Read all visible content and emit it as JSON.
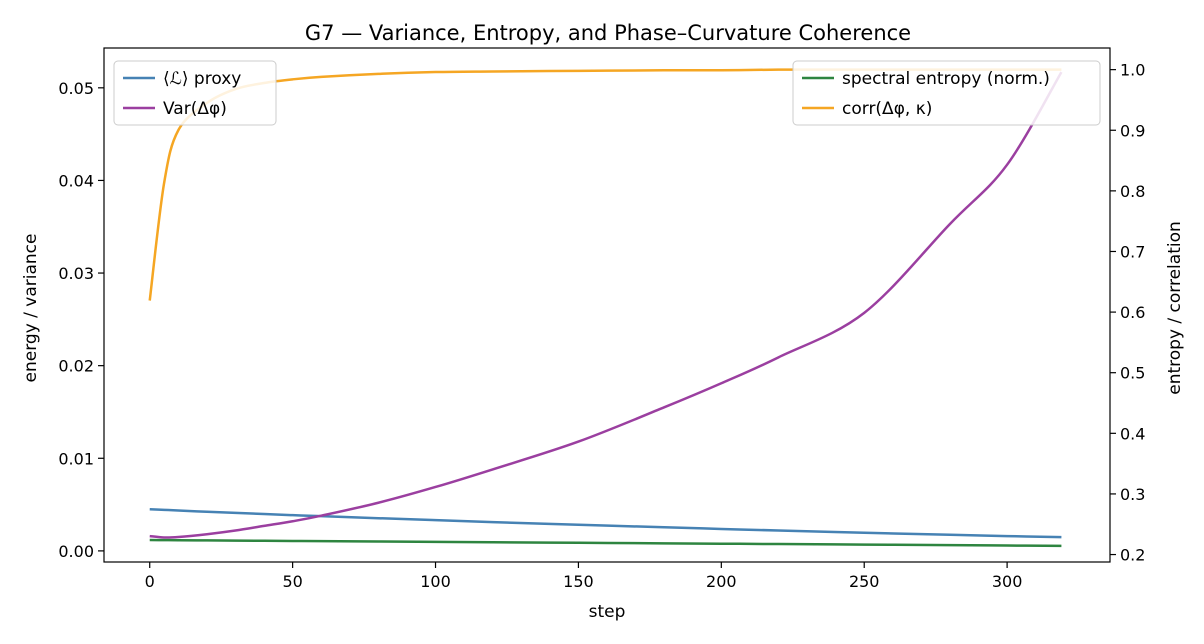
{
  "chart_data": {
    "type": "line",
    "title": "G7 — Variance, Entropy, and Phase–Curvature Coherence",
    "xlabel": "step",
    "ylabel_left": "energy / variance",
    "ylabel_right": "entropy / correlation",
    "xlim": [
      -16,
      336
    ],
    "ylim_left": [
      -0.0012,
      0.0543
    ],
    "ylim_right": [
      0.1877,
      1.0357
    ],
    "x_ticks": [
      0,
      50,
      100,
      150,
      200,
      250,
      300
    ],
    "y_ticks_left": [
      0.0,
      0.01,
      0.02,
      0.03,
      0.04,
      0.05
    ],
    "y_tick_labels_left": [
      "0.00",
      "0.01",
      "0.02",
      "0.03",
      "0.04",
      "0.05"
    ],
    "y_ticks_right": [
      0.2,
      0.3,
      0.4,
      0.5,
      0.6,
      0.7,
      0.8,
      0.9,
      1.0
    ],
    "y_tick_labels_right": [
      "0.2",
      "0.3",
      "0.4",
      "0.5",
      "0.6",
      "0.7",
      "0.8",
      "0.9",
      "1.0"
    ],
    "grid": false,
    "legend_left": {
      "placement": "top-left",
      "entries": [
        "⟨ℒ⟩ proxy",
        "Var(Δφ)"
      ]
    },
    "legend_right": {
      "placement": "top-right",
      "entries": [
        "spectral entropy (norm.)",
        "corr(Δφ, κ)"
      ]
    },
    "x": [
      0,
      5,
      10,
      20,
      30,
      40,
      50,
      60,
      80,
      100,
      120,
      150,
      180,
      200,
      220,
      250,
      280,
      300,
      319
    ],
    "series": [
      {
        "name": "⟨ℒ⟩ proxy",
        "axis": "left",
        "color": "#4682b4",
        "values": [
          0.0045,
          0.00443,
          0.00436,
          0.00422,
          0.0041,
          0.00398,
          0.00386,
          0.00375,
          0.00353,
          0.00332,
          0.00311,
          0.00282,
          0.00255,
          0.00237,
          0.0022,
          0.00196,
          0.00174,
          0.0016,
          0.00148
        ]
      },
      {
        "name": "Var(Δφ)",
        "axis": "left",
        "color": "#9b3fa0",
        "values": [
          0.0016,
          0.00145,
          0.0015,
          0.0018,
          0.0022,
          0.0027,
          0.0032,
          0.0038,
          0.0052,
          0.0069,
          0.0088,
          0.0118,
          0.0155,
          0.0181,
          0.0209,
          0.0257,
          0.0353,
          0.0417,
          0.0517
        ]
      },
      {
        "name": "spectral entropy (norm.)",
        "axis": "right",
        "color": "#2e8540",
        "values": [
          0.224,
          0.2238,
          0.2236,
          0.2233,
          0.223,
          0.2227,
          0.2224,
          0.2221,
          0.2215,
          0.2209,
          0.2203,
          0.2194,
          0.2185,
          0.2179,
          0.2173,
          0.2164,
          0.2155,
          0.2149,
          0.2143
        ]
      },
      {
        "name": "corr(Δφ, κ)",
        "axis": "right",
        "color": "#f5a623",
        "values": [
          0.619,
          0.812,
          0.9,
          0.945,
          0.968,
          0.978,
          0.984,
          0.988,
          0.993,
          0.996,
          0.997,
          0.998,
          0.999,
          0.999,
          1.0,
          1.0,
          1.0,
          1.0,
          1.0
        ]
      }
    ]
  }
}
